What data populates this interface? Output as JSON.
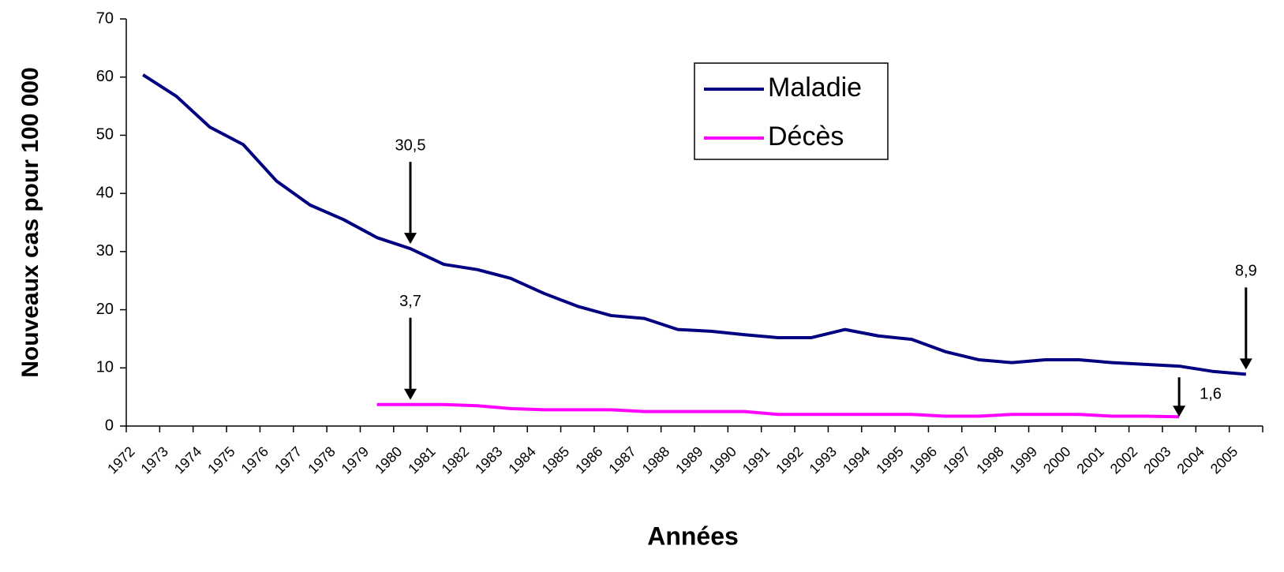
{
  "chart_data": {
    "type": "line",
    "y_label": "Nouveaux cas pour 100 000",
    "x_label": "Années",
    "categories": [
      "1972",
      "1973",
      "1974",
      "1975",
      "1976",
      "1977",
      "1978",
      "1979",
      "1980",
      "1981",
      "1982",
      "1983",
      "1984",
      "1985",
      "1986",
      "1987",
      "1988",
      "1989",
      "1990",
      "1991",
      "1992",
      "1993",
      "1994",
      "1995",
      "1996",
      "1997",
      "1998",
      "1999",
      "2000",
      "2001",
      "2002",
      "2003",
      "2004",
      "2005"
    ],
    "series": [
      {
        "name": "Maladie",
        "color": "#000080",
        "values": [
          60.4,
          56.7,
          51.4,
          48.4,
          42.1,
          38.0,
          35.5,
          32.4,
          30.5,
          27.8,
          26.9,
          25.4,
          22.8,
          20.6,
          19.0,
          18.5,
          16.6,
          16.3,
          15.7,
          15.2,
          15.2,
          16.6,
          15.5,
          14.9,
          12.8,
          11.4,
          10.9,
          11.4,
          11.4,
          10.9,
          10.6,
          10.3,
          9.4,
          8.9
        ]
      },
      {
        "name": "Décès",
        "color": "#ff00ff",
        "values": [
          null,
          null,
          null,
          null,
          null,
          null,
          null,
          3.7,
          3.7,
          3.7,
          3.5,
          3.0,
          2.8,
          2.8,
          2.8,
          2.5,
          2.5,
          2.5,
          2.5,
          2.0,
          2.0,
          2.0,
          2.0,
          2.0,
          1.7,
          1.7,
          2.0,
          2.0,
          2.0,
          1.7,
          1.7,
          1.6,
          null,
          null
        ]
      }
    ],
    "annotations": [
      {
        "text": "30,5"
      },
      {
        "text": "3,7"
      },
      {
        "text": "8,9"
      },
      {
        "text": "1,6"
      }
    ],
    "ylim": [
      0,
      70
    ],
    "yticks": [
      0,
      10,
      20,
      30,
      40,
      50,
      60,
      70
    ],
    "grid": false,
    "legend": "top-center"
  }
}
